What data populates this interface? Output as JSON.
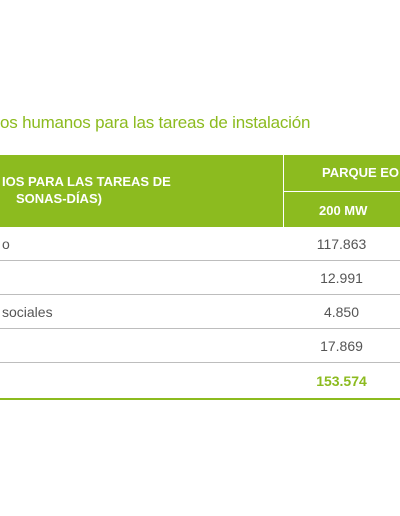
{
  "title": "os humanos para las tareas de instalación",
  "table": {
    "header": {
      "left_line1": "IOS PARA LAS TAREAS DE",
      "left_line2": "SONAS-DÍAS)",
      "right_top": "PARQUE EO",
      "right_sub": "200 MW"
    },
    "rows": [
      {
        "label": "o",
        "value": "117.863"
      },
      {
        "label": "",
        "value": "12.991"
      },
      {
        "label": "sociales",
        "value": "4.850"
      },
      {
        "label": "",
        "value": "17.869"
      }
    ],
    "total": {
      "label": "",
      "value": "153.574"
    }
  },
  "colors": {
    "accent": "#8cbb1f",
    "text": "#555555",
    "rule": "#bdbdbd"
  }
}
